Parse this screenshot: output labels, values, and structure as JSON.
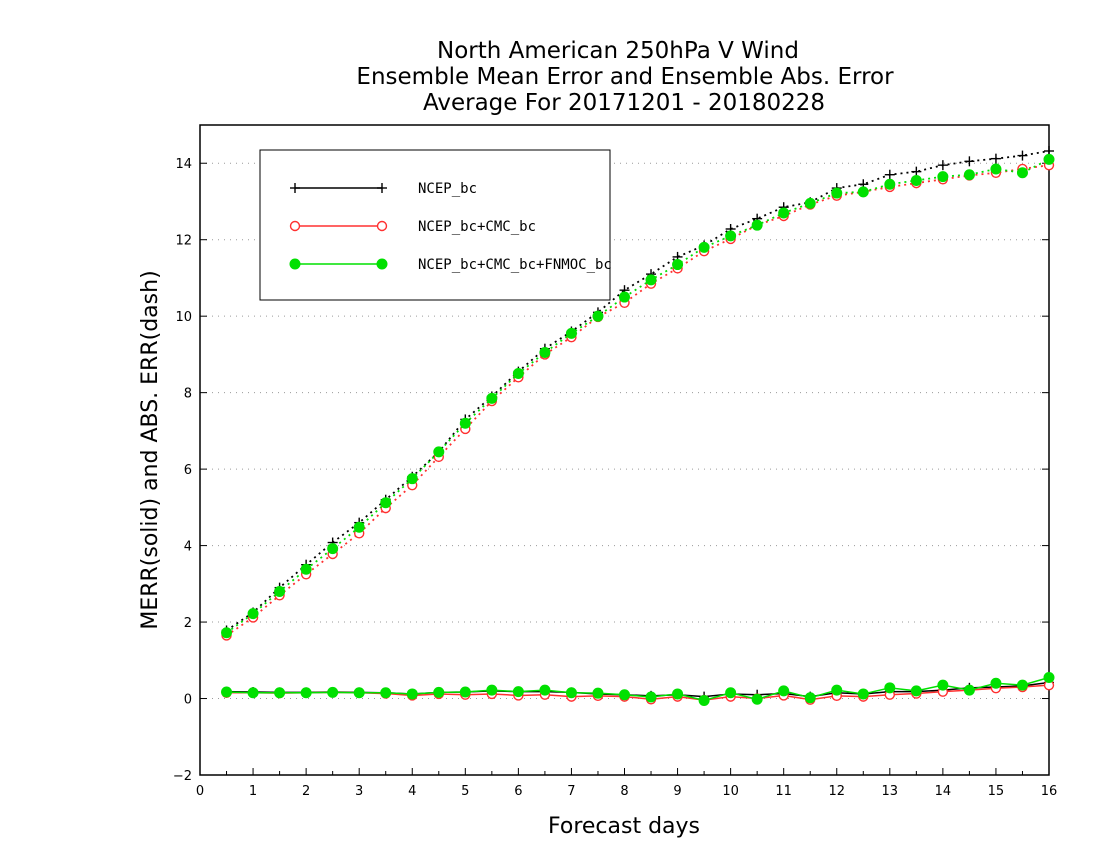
{
  "chart_data": {
    "type": "line",
    "title": [
      "North American 250hPa V Wind",
      "Ensemble Mean Error and Ensemble Abs. Error",
      "Average For 20171201 - 20180228"
    ],
    "xlabel": "Forecast days",
    "ylabel": "MERR(solid) and ABS. ERR(dash)",
    "xlim": [
      0,
      16
    ],
    "ylim": [
      -2,
      15
    ],
    "xticks": [
      "0",
      "1",
      "2",
      "3",
      "4",
      "5",
      "6",
      "7",
      "8",
      "9",
      "10",
      "11",
      "12",
      "13",
      "14",
      "15",
      "16"
    ],
    "yticks": [
      "−2",
      "0",
      "2",
      "4",
      "6",
      "8",
      "10",
      "12",
      "14"
    ],
    "grid": "horizontal dotted",
    "legend_position": "top-left",
    "x": [
      0.5,
      1,
      1.5,
      2,
      2.5,
      3,
      3.5,
      4,
      4.5,
      5,
      5.5,
      6,
      6.5,
      7,
      7.5,
      8,
      8.5,
      9,
      9.5,
      10,
      10.5,
      11,
      11.5,
      12,
      12.5,
      13,
      13.5,
      14,
      14.5,
      15,
      15.5,
      16
    ],
    "series": [
      {
        "name": "NCEP_bc",
        "color": "#000000",
        "marker": "plus",
        "abs_err": [
          1.78,
          2.25,
          2.9,
          3.5,
          4.08,
          4.6,
          5.2,
          5.8,
          6.45,
          7.3,
          7.9,
          8.55,
          9.15,
          9.6,
          10.1,
          10.68,
          11.1,
          11.55,
          11.85,
          12.28,
          12.55,
          12.85,
          12.98,
          13.35,
          13.45,
          13.7,
          13.78,
          13.95,
          14.05,
          14.12,
          14.2,
          14.32
        ],
        "mean_err": [
          0.18,
          0.17,
          0.16,
          0.16,
          0.17,
          0.16,
          0.15,
          0.12,
          0.16,
          0.17,
          0.2,
          0.18,
          0.18,
          0.16,
          0.12,
          0.1,
          0.07,
          0.1,
          0.05,
          0.12,
          0.1,
          0.13,
          0.05,
          0.15,
          0.12,
          0.18,
          0.18,
          0.22,
          0.28,
          0.3,
          0.33,
          0.42
        ]
      },
      {
        "name": "NCEP_bc+CMC_bc",
        "color": "#ff3030",
        "marker": "open-circle",
        "abs_err": [
          1.65,
          2.12,
          2.7,
          3.25,
          3.78,
          4.32,
          4.98,
          5.58,
          6.32,
          7.05,
          7.78,
          8.4,
          9.0,
          9.45,
          9.98,
          10.35,
          10.85,
          11.25,
          11.7,
          12.02,
          12.38,
          12.62,
          12.92,
          13.15,
          13.25,
          13.38,
          13.48,
          13.58,
          13.68,
          13.75,
          13.85,
          13.95
        ],
        "mean_err": [
          0.15,
          0.15,
          0.14,
          0.15,
          0.16,
          0.15,
          0.13,
          0.08,
          0.12,
          0.1,
          0.12,
          0.08,
          0.1,
          0.05,
          0.07,
          0.05,
          -0.02,
          0.05,
          -0.04,
          0.05,
          0.0,
          0.08,
          -0.03,
          0.07,
          0.05,
          0.1,
          0.13,
          0.18,
          0.22,
          0.27,
          0.3,
          0.35
        ]
      },
      {
        "name": "NCEP_bc+CMC_bc+FNMOC_bc",
        "color": "#00e000",
        "marker": "filled-circle",
        "abs_err": [
          1.72,
          2.22,
          2.8,
          3.38,
          3.92,
          4.48,
          5.12,
          5.75,
          6.45,
          7.2,
          7.85,
          8.5,
          9.05,
          9.55,
          10.0,
          10.5,
          10.95,
          11.35,
          11.8,
          12.1,
          12.38,
          12.7,
          12.95,
          13.22,
          13.25,
          13.45,
          13.55,
          13.65,
          13.7,
          13.85,
          13.75,
          14.1
        ],
        "mean_err": [
          0.17,
          0.15,
          0.15,
          0.15,
          0.16,
          0.15,
          0.15,
          0.12,
          0.16,
          0.17,
          0.22,
          0.18,
          0.22,
          0.15,
          0.14,
          0.1,
          0.04,
          0.12,
          -0.05,
          0.15,
          -0.02,
          0.2,
          0.02,
          0.22,
          0.12,
          0.28,
          0.2,
          0.35,
          0.22,
          0.4,
          0.35,
          0.55
        ]
      }
    ]
  }
}
